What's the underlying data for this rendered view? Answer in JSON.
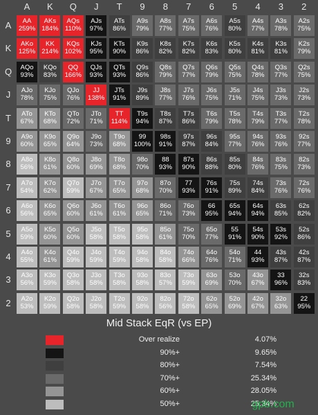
{
  "chart_data": {
    "type": "heatmap",
    "title": "Mid Stack EqR (vs EP)",
    "ranks": [
      "A",
      "K",
      "Q",
      "J",
      "T",
      "9",
      "8",
      "7",
      "6",
      "5",
      "4",
      "3",
      "2"
    ],
    "cells": [
      [
        [
          "AA",
          "259%"
        ],
        [
          "AKs",
          "184%"
        ],
        [
          "AQs",
          "110%"
        ],
        [
          "AJs",
          "97%"
        ],
        [
          "ATs",
          "86%"
        ],
        [
          "A9s",
          "79%"
        ],
        [
          "A8s",
          "77%"
        ],
        [
          "A7s",
          "75%"
        ],
        [
          "A6s",
          "76%"
        ],
        [
          "A5s",
          "80%"
        ],
        [
          "A4s",
          "77%"
        ],
        [
          "A3s",
          "78%"
        ],
        [
          "A2s",
          "75%"
        ]
      ],
      [
        [
          "AKo",
          "125%"
        ],
        [
          "KK",
          "214%"
        ],
        [
          "KQs",
          "102%"
        ],
        [
          "KJs",
          "95%"
        ],
        [
          "KTs",
          "90%"
        ],
        [
          "K9s",
          "86%"
        ],
        [
          "K8s",
          "82%"
        ],
        [
          "K7s",
          "82%"
        ],
        [
          "K6s",
          "83%"
        ],
        [
          "K5s",
          "80%"
        ],
        [
          "K4s",
          "81%"
        ],
        [
          "K3s",
          "81%"
        ],
        [
          "K2s",
          "79%"
        ]
      ],
      [
        [
          "AQo",
          "93%"
        ],
        [
          "KQo",
          "83%"
        ],
        [
          "QQ",
          "166%"
        ],
        [
          "QJs",
          "93%"
        ],
        [
          "QTs",
          "93%"
        ],
        [
          "Q9s",
          "86%"
        ],
        [
          "Q8s",
          "79%"
        ],
        [
          "Q7s",
          "77%"
        ],
        [
          "Q6s",
          "79%"
        ],
        [
          "Q5s",
          "75%"
        ],
        [
          "Q4s",
          "78%"
        ],
        [
          "Q3s",
          "77%"
        ],
        [
          "Q2s",
          "75%"
        ]
      ],
      [
        [
          "AJo",
          "78%"
        ],
        [
          "KJo",
          "75%"
        ],
        [
          "QJo",
          "76%"
        ],
        [
          "JJ",
          "138%"
        ],
        [
          "JTs",
          "91%"
        ],
        [
          "J9s",
          "89%"
        ],
        [
          "J8s",
          "77%"
        ],
        [
          "J7s",
          "76%"
        ],
        [
          "J6s",
          "75%"
        ],
        [
          "J5s",
          "71%"
        ],
        [
          "J4s",
          "75%"
        ],
        [
          "J3s",
          "73%"
        ],
        [
          "J2s",
          "73%"
        ]
      ],
      [
        [
          "ATo",
          "67%"
        ],
        [
          "KTo",
          "68%"
        ],
        [
          "QTo",
          "72%"
        ],
        [
          "JTo",
          "71%"
        ],
        [
          "TT",
          "114%"
        ],
        [
          "T9s",
          "94%"
        ],
        [
          "T8s",
          "87%"
        ],
        [
          "T7s",
          "86%"
        ],
        [
          "T6s",
          "79%"
        ],
        [
          "T5s",
          "78%"
        ],
        [
          "T4s",
          "79%"
        ],
        [
          "T3s",
          "77%"
        ],
        [
          "T2s",
          "78%"
        ]
      ],
      [
        [
          "A9o",
          "60%"
        ],
        [
          "K9o",
          "65%"
        ],
        [
          "Q9o",
          "64%"
        ],
        [
          "J9o",
          "73%"
        ],
        [
          "T9o",
          "68%"
        ],
        [
          "99",
          "100%"
        ],
        [
          "98s",
          "91%"
        ],
        [
          "97s",
          "87%"
        ],
        [
          "96s",
          "84%"
        ],
        [
          "95s",
          "77%"
        ],
        [
          "94s",
          "76%"
        ],
        [
          "93s",
          "76%"
        ],
        [
          "92s",
          "77%"
        ]
      ],
      [
        [
          "A8o",
          "56%"
        ],
        [
          "K8o",
          "61%"
        ],
        [
          "Q8o",
          "60%"
        ],
        [
          "J8o",
          "69%"
        ],
        [
          "T8o",
          "68%"
        ],
        [
          "98o",
          "70%"
        ],
        [
          "88",
          "93%"
        ],
        [
          "87s",
          "90%"
        ],
        [
          "86s",
          "88%"
        ],
        [
          "85s",
          "80%"
        ],
        [
          "84s",
          "76%"
        ],
        [
          "83s",
          "75%"
        ],
        [
          "82s",
          "73%"
        ]
      ],
      [
        [
          "A7o",
          "54%"
        ],
        [
          "K7o",
          "62%"
        ],
        [
          "Q7o",
          "59%"
        ],
        [
          "J7o",
          "67%"
        ],
        [
          "T7o",
          "65%"
        ],
        [
          "97o",
          "68%"
        ],
        [
          "87o",
          "70%"
        ],
        [
          "77",
          "93%"
        ],
        [
          "76s",
          "91%"
        ],
        [
          "75s",
          "89%"
        ],
        [
          "74s",
          "84%"
        ],
        [
          "73s",
          "76%"
        ],
        [
          "72s",
          "76%"
        ]
      ],
      [
        [
          "A6o",
          "56%"
        ],
        [
          "K6o",
          "65%"
        ],
        [
          "Q6o",
          "60%"
        ],
        [
          "J6o",
          "61%"
        ],
        [
          "T6o",
          "61%"
        ],
        [
          "96o",
          "65%"
        ],
        [
          "86o",
          "71%"
        ],
        [
          "76o",
          "73%"
        ],
        [
          "66",
          "95%"
        ],
        [
          "65s",
          "94%"
        ],
        [
          "64s",
          "94%"
        ],
        [
          "63s",
          "85%"
        ],
        [
          "62s",
          "82%"
        ]
      ],
      [
        [
          "A5o",
          "59%"
        ],
        [
          "K5o",
          "60%"
        ],
        [
          "Q5o",
          "60%"
        ],
        [
          "J5o",
          "58%"
        ],
        [
          "T5o",
          "58%"
        ],
        [
          "95o",
          "58%"
        ],
        [
          "85o",
          "61%"
        ],
        [
          "75o",
          "70%"
        ],
        [
          "65o",
          "77%"
        ],
        [
          "55",
          "91%"
        ],
        [
          "54s",
          "90%"
        ],
        [
          "53s",
          "92%"
        ],
        [
          "52s",
          "86%"
        ]
      ],
      [
        [
          "A4o",
          "55%"
        ],
        [
          "K4o",
          "61%"
        ],
        [
          "Q4o",
          "59%"
        ],
        [
          "J4o",
          "59%"
        ],
        [
          "T4o",
          "59%"
        ],
        [
          "94o",
          "58%"
        ],
        [
          "84o",
          "58%"
        ],
        [
          "74o",
          "66%"
        ],
        [
          "64o",
          "76%"
        ],
        [
          "54o",
          "71%"
        ],
        [
          "44",
          "93%"
        ],
        [
          "43s",
          "87%"
        ],
        [
          "42s",
          "87%"
        ]
      ],
      [
        [
          "A3o",
          "56%"
        ],
        [
          "K3o",
          "59%"
        ],
        [
          "Q3o",
          "58%"
        ],
        [
          "J3o",
          "58%"
        ],
        [
          "T3o",
          "58%"
        ],
        [
          "93o",
          "58%"
        ],
        [
          "83o",
          "57%"
        ],
        [
          "73o",
          "59%"
        ],
        [
          "63o",
          "69%"
        ],
        [
          "53o",
          "70%"
        ],
        [
          "43o",
          "67%"
        ],
        [
          "33",
          "96%"
        ],
        [
          "32s",
          "83%"
        ]
      ],
      [
        [
          "A2o",
          "53%"
        ],
        [
          "K2o",
          "59%"
        ],
        [
          "Q2o",
          "58%"
        ],
        [
          "J2o",
          "58%"
        ],
        [
          "T2o",
          "59%"
        ],
        [
          "92o",
          "58%"
        ],
        [
          "82o",
          "56%"
        ],
        [
          "72o",
          "58%"
        ],
        [
          "62o",
          "65%"
        ],
        [
          "52o",
          "69%"
        ],
        [
          "42o",
          "67%"
        ],
        [
          "32o",
          "63%"
        ],
        [
          "22",
          "95%"
        ]
      ]
    ],
    "legend": [
      {
        "label": "Over realize",
        "value": "4.07%",
        "color": "#e8242b"
      },
      {
        "label": "90%+",
        "value": "9.65%",
        "color": "#141414"
      },
      {
        "label": "80%+",
        "value": "7.54%",
        "color": "#3f3f3f"
      },
      {
        "label": "70%+",
        "value": "25.34%",
        "color": "#6a6a6a"
      },
      {
        "label": "60%+",
        "value": "28.05%",
        "color": "#959595"
      },
      {
        "label": "50%+",
        "value": "25.34%",
        "color": "#bdbdbd"
      }
    ]
  },
  "watermark": "gpb.com"
}
